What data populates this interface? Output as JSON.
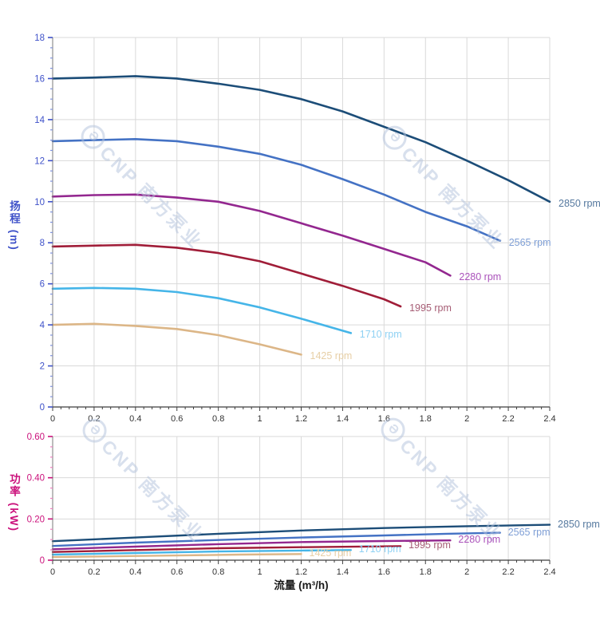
{
  "style": {
    "background": "#ffffff",
    "grid_color": "#d9d9d9",
    "x_axis_color": "#3f3f3f",
    "y_axis_line_color": "#7a7a7a",
    "x_tick_label_color": "#333333",
    "head_accent": "#3f52c9",
    "power_accent": "#cb127c",
    "watermark_color": "#b3c2dc"
  },
  "watermark": {
    "logo_glyph": "Ə",
    "text": "CNP 南方泵业"
  },
  "chart_data": [
    {
      "id": "head",
      "type": "line",
      "ylabel": "扬程 (m)",
      "xlim": [
        0,
        2.4
      ],
      "ylim": [
        0,
        18
      ],
      "grid": true,
      "x_tick_step": 0.2,
      "x_minor_step": 0.04,
      "y_tick_step": 2,
      "y_minor_step": 0.5,
      "axis_color": "#3f52c9",
      "minor_tick_color": "#8093dd",
      "x_ticks": [
        {
          "v": 0,
          "label": "0"
        },
        {
          "v": 0.2,
          "label": "0.2"
        },
        {
          "v": 0.4,
          "label": "0.4"
        },
        {
          "v": 0.6,
          "label": "0.6"
        },
        {
          "v": 0.8,
          "label": "0.8"
        },
        {
          "v": 1,
          "label": "1"
        },
        {
          "v": 1.2,
          "label": "1.2"
        },
        {
          "v": 1.4,
          "label": "1.4"
        },
        {
          "v": 1.6,
          "label": "1.6"
        },
        {
          "v": 1.8,
          "label": "1.8"
        },
        {
          "v": 2,
          "label": "2"
        },
        {
          "v": 2.2,
          "label": "2.2"
        },
        {
          "v": 2.4,
          "label": "2.4"
        }
      ],
      "y_ticks": [
        {
          "v": 0,
          "label": "0"
        },
        {
          "v": 2,
          "label": "2"
        },
        {
          "v": 4,
          "label": "4"
        },
        {
          "v": 6,
          "label": "6"
        },
        {
          "v": 8,
          "label": "8"
        },
        {
          "v": 10,
          "label": "10"
        },
        {
          "v": 12,
          "label": "12"
        },
        {
          "v": 14,
          "label": "14"
        },
        {
          "v": 16,
          "label": "16"
        },
        {
          "v": 18,
          "label": "18"
        }
      ],
      "series": [
        {
          "name": "2850 rpm",
          "color": "#1c4d78",
          "label_color": "#56799f",
          "points": [
            [
              0,
              16.0
            ],
            [
              0.2,
              16.05
            ],
            [
              0.4,
              16.12
            ],
            [
              0.6,
              16.0
            ],
            [
              0.8,
              15.75
            ],
            [
              1.0,
              15.45
            ],
            [
              1.2,
              15.0
            ],
            [
              1.4,
              14.4
            ],
            [
              1.6,
              13.65
            ],
            [
              1.8,
              12.9
            ],
            [
              2.0,
              12.0
            ],
            [
              2.2,
              11.05
            ],
            [
              2.4,
              10.0
            ]
          ]
        },
        {
          "name": "2565 rpm",
          "color": "#4472c4",
          "label_color": "#7f9fd6",
          "points": [
            [
              0,
              12.95
            ],
            [
              0.2,
              13.0
            ],
            [
              0.4,
              13.05
            ],
            [
              0.6,
              12.95
            ],
            [
              0.8,
              12.68
            ],
            [
              1.0,
              12.33
            ],
            [
              1.2,
              11.8
            ],
            [
              1.4,
              11.1
            ],
            [
              1.6,
              10.35
            ],
            [
              1.8,
              9.5
            ],
            [
              2.0,
              8.8
            ],
            [
              2.16,
              8.1
            ]
          ]
        },
        {
          "name": "2280 rpm",
          "color": "#93278f",
          "label_color": "#ab53bb",
          "points": [
            [
              0,
              10.25
            ],
            [
              0.2,
              10.32
            ],
            [
              0.4,
              10.35
            ],
            [
              0.6,
              10.2
            ],
            [
              0.8,
              10.0
            ],
            [
              1.0,
              9.55
            ],
            [
              1.2,
              8.95
            ],
            [
              1.4,
              8.35
            ],
            [
              1.6,
              7.7
            ],
            [
              1.8,
              7.05
            ],
            [
              1.92,
              6.4
            ]
          ]
        },
        {
          "name": "1995 rpm",
          "color": "#a01d38",
          "label_color": "#a65d75",
          "points": [
            [
              0,
              7.82
            ],
            [
              0.2,
              7.86
            ],
            [
              0.4,
              7.9
            ],
            [
              0.6,
              7.76
            ],
            [
              0.8,
              7.5
            ],
            [
              1.0,
              7.1
            ],
            [
              1.2,
              6.5
            ],
            [
              1.4,
              5.9
            ],
            [
              1.6,
              5.25
            ],
            [
              1.68,
              4.9
            ]
          ]
        },
        {
          "name": "1710 rpm",
          "color": "#45b5e8",
          "label_color": "#8fd1f3",
          "points": [
            [
              0,
              5.76
            ],
            [
              0.2,
              5.8
            ],
            [
              0.4,
              5.76
            ],
            [
              0.6,
              5.6
            ],
            [
              0.8,
              5.3
            ],
            [
              1.0,
              4.85
            ],
            [
              1.2,
              4.3
            ],
            [
              1.44,
              3.6
            ]
          ]
        },
        {
          "name": "1425 rpm",
          "color": "#dcb687",
          "label_color": "#e7cfa6",
          "points": [
            [
              0,
              4.0
            ],
            [
              0.2,
              4.05
            ],
            [
              0.4,
              3.95
            ],
            [
              0.6,
              3.8
            ],
            [
              0.8,
              3.5
            ],
            [
              1.0,
              3.05
            ],
            [
              1.2,
              2.55
            ]
          ]
        }
      ]
    },
    {
      "id": "power",
      "type": "line",
      "ylabel": "功率 (kW)",
      "xlabel": "流量 (m³/h)",
      "xlim": [
        0,
        2.4
      ],
      "ylim": [
        0,
        0.6
      ],
      "grid": true,
      "x_tick_step": 0.2,
      "x_minor_step": 0.04,
      "y_tick_step": 0.2,
      "y_minor_step": 0.05,
      "axis_color": "#cb127c",
      "minor_tick_color": "#ef7fc0",
      "x_ticks": [
        {
          "v": 0,
          "label": "0"
        },
        {
          "v": 0.2,
          "label": "0.2"
        },
        {
          "v": 0.4,
          "label": "0.4"
        },
        {
          "v": 0.6,
          "label": "0.6"
        },
        {
          "v": 0.8,
          "label": "0.8"
        },
        {
          "v": 1,
          "label": "1"
        },
        {
          "v": 1.2,
          "label": "1.2"
        },
        {
          "v": 1.4,
          "label": "1.4"
        },
        {
          "v": 1.6,
          "label": "1.6"
        },
        {
          "v": 1.8,
          "label": "1.8"
        },
        {
          "v": 2,
          "label": "2"
        },
        {
          "v": 2.2,
          "label": "2.2"
        },
        {
          "v": 2.4,
          "label": "2.4"
        }
      ],
      "y_ticks": [
        {
          "v": 0,
          "label": "0"
        },
        {
          "v": 0.2,
          "label": "0.20"
        },
        {
          "v": 0.4,
          "label": "0.40"
        },
        {
          "v": 0.6,
          "label": "0.60"
        }
      ],
      "series": [
        {
          "name": "2850 rpm",
          "color": "#1c4d78",
          "label_color": "#56799f",
          "points": [
            [
              0,
              0.092
            ],
            [
              0.4,
              0.11
            ],
            [
              0.8,
              0.128
            ],
            [
              1.2,
              0.144
            ],
            [
              1.6,
              0.156
            ],
            [
              2.0,
              0.165
            ],
            [
              2.4,
              0.172
            ]
          ]
        },
        {
          "name": "2565 rpm",
          "color": "#4472c4",
          "label_color": "#7f9fd6",
          "points": [
            [
              0,
              0.069
            ],
            [
              0.4,
              0.085
            ],
            [
              0.8,
              0.098
            ],
            [
              1.2,
              0.11
            ],
            [
              1.6,
              0.12
            ],
            [
              1.9,
              0.128
            ],
            [
              2.16,
              0.133
            ]
          ]
        },
        {
          "name": "2280 rpm",
          "color": "#93278f",
          "label_color": "#ab53bb",
          "points": [
            [
              0,
              0.053
            ],
            [
              0.4,
              0.066
            ],
            [
              0.8,
              0.078
            ],
            [
              1.2,
              0.088
            ],
            [
              1.6,
              0.093
            ],
            [
              1.92,
              0.096
            ]
          ]
        },
        {
          "name": "1995 rpm",
          "color": "#a01d38",
          "label_color": "#a65d75",
          "points": [
            [
              0,
              0.04
            ],
            [
              0.4,
              0.049
            ],
            [
              0.8,
              0.058
            ],
            [
              1.2,
              0.063
            ],
            [
              1.68,
              0.068
            ]
          ]
        },
        {
          "name": "1710 rpm",
          "color": "#45b5e8",
          "label_color": "#8fd1f3",
          "points": [
            [
              0,
              0.027
            ],
            [
              0.4,
              0.035
            ],
            [
              0.8,
              0.042
            ],
            [
              1.2,
              0.047
            ],
            [
              1.44,
              0.049
            ]
          ]
        },
        {
          "name": "1425 rpm",
          "color": "#dcb687",
          "label_color": "#e7cfa6",
          "points": [
            [
              0,
              0.015
            ],
            [
              0.3,
              0.019
            ],
            [
              0.6,
              0.023
            ],
            [
              0.9,
              0.027
            ],
            [
              1.2,
              0.03
            ]
          ]
        }
      ]
    }
  ]
}
